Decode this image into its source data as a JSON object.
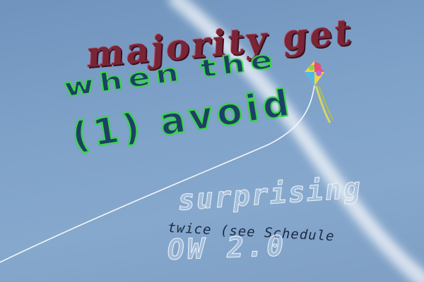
{
  "texts": {
    "line1": "majority get",
    "line2": "when the",
    "line3": "(1) avoid",
    "line4": "surprising",
    "line5": "twice (see Schedule",
    "line6": "OW 2.0"
  },
  "colors": {
    "sky": "#7fa2c9",
    "maroon_text": "#7a2436",
    "navy_text": "#1e3f66",
    "green_outline": "#39d64a",
    "kite_tail": "#d8d36a"
  }
}
